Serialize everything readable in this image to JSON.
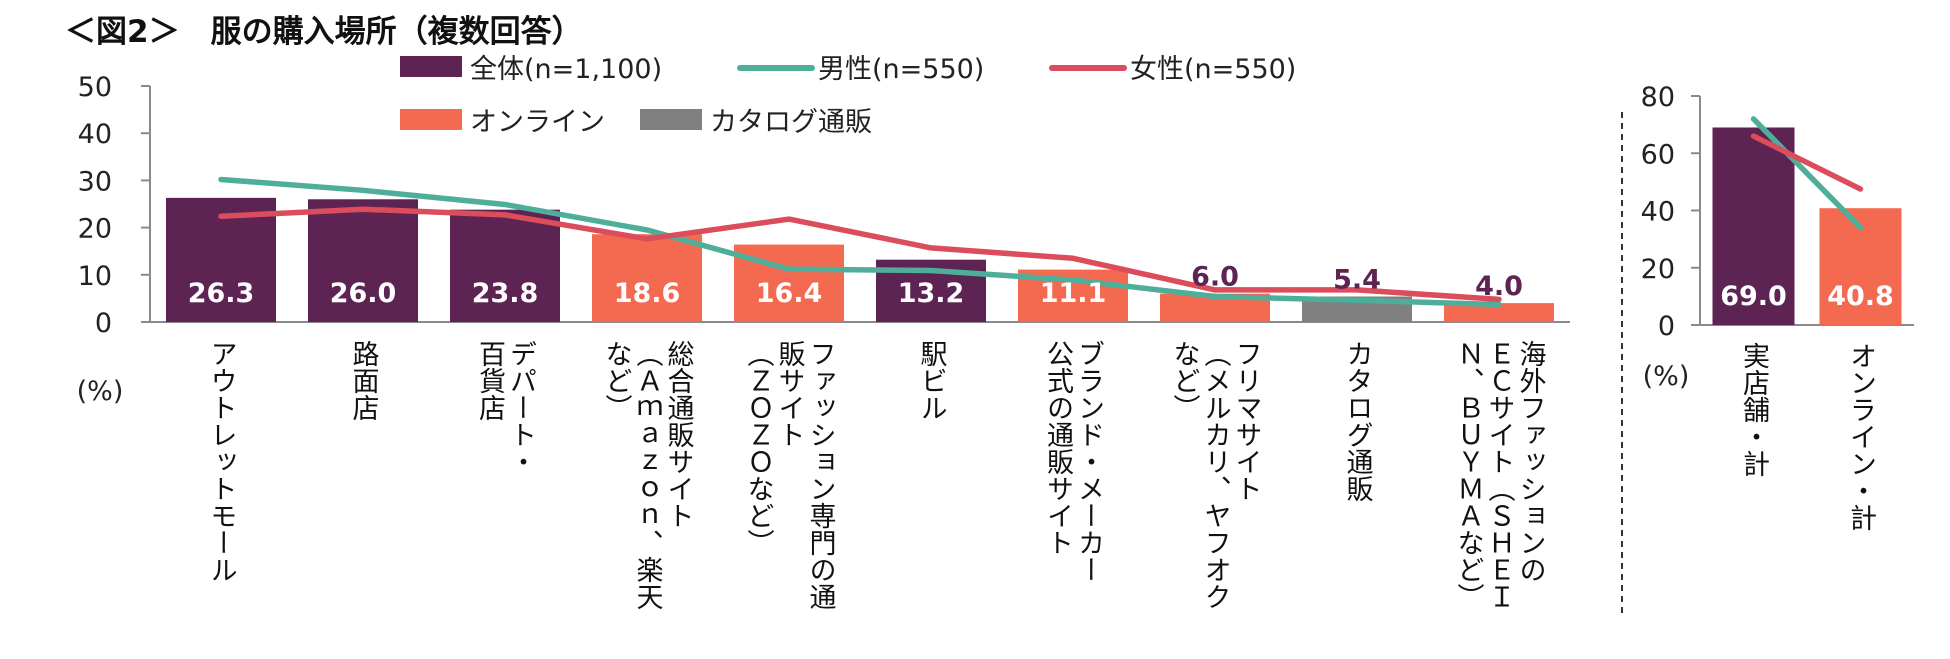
{
  "title": "＜図2＞　服の購入場所（複数回答）",
  "colors": {
    "overall": "#5c2353",
    "online": "#f36a50",
    "catalog": "#808080",
    "male": "#4fae99",
    "female": "#dc4d5c",
    "value_light": "#ffffff",
    "value_dark": "#5c2353"
  },
  "chart_data": [
    {
      "type": "bar",
      "unit_label": "(%)",
      "ylim": [
        0,
        50
      ],
      "yticks": [
        0,
        10,
        20,
        30,
        40,
        50
      ],
      "legend": [
        {
          "key": "overall",
          "label": "全体(n=1,100)",
          "kind": "bar"
        },
        {
          "key": "male",
          "label": "男性(n=550)",
          "kind": "line"
        },
        {
          "key": "female",
          "label": "女性(n=550)",
          "kind": "line"
        },
        {
          "key": "online",
          "label": "オンライン",
          "kind": "bar"
        },
        {
          "key": "catalog",
          "label": "カタログ通販",
          "kind": "bar"
        }
      ],
      "categories": [
        {
          "label_cols": [
            "アウトレットモール"
          ],
          "value": 26.3,
          "value_text": "26.3",
          "group": "overall",
          "male": 30.2,
          "female": 22.4
        },
        {
          "label_cols": [
            "路面店"
          ],
          "value": 26.0,
          "value_text": "26.0",
          "group": "overall",
          "male": 27.9,
          "female": 23.9
        },
        {
          "label_cols": [
            "デパート・",
            "百貨店"
          ],
          "value": 23.8,
          "value_text": "23.8",
          "group": "overall",
          "male": 24.9,
          "female": 22.7
        },
        {
          "label_cols": [
            "総合通販サイト",
            "（Ａｍａｚｏｎ、楽天",
            "など）"
          ],
          "value": 18.6,
          "value_text": "18.6",
          "group": "online",
          "male": 19.5,
          "female": 17.6
        },
        {
          "label_cols": [
            "ファッション専門の通",
            "販サイト",
            "（ＺＯＺＯなど）"
          ],
          "value": 16.4,
          "value_text": "16.4",
          "group": "online",
          "male": 11.2,
          "female": 21.8
        },
        {
          "label_cols": [
            "駅ビル"
          ],
          "value": 13.2,
          "value_text": "13.2",
          "group": "overall",
          "male": 10.9,
          "female": 15.7
        },
        {
          "label_cols": [
            "ブランド・メーカー",
            "公式の通販サイト"
          ],
          "value": 11.1,
          "value_text": "11.1",
          "group": "online",
          "male": 8.9,
          "female": 13.5
        },
        {
          "label_cols": [
            "フリマサイト",
            "（メルカリ、ヤフオク",
            "など）"
          ],
          "value": 6.0,
          "value_text": "6.0",
          "group": "online",
          "male": 5.4,
          "female": 6.8
        },
        {
          "label_cols": [
            "カタログ通販"
          ],
          "value": 5.4,
          "value_text": "5.4",
          "group": "catalog",
          "male": 4.6,
          "female": 6.8
        },
        {
          "label_cols": [
            "海外ファッションの",
            "ＥＣサイト（ＳＨＥＩ",
            "Ｎ、ＢＵＹＭＡなど）"
          ],
          "value": 4.0,
          "value_text": "4.0",
          "group": "online",
          "male": 3.7,
          "female": 4.8
        }
      ]
    },
    {
      "type": "bar",
      "unit_label": "(%)",
      "ylim": [
        0,
        80
      ],
      "yticks": [
        0,
        20,
        40,
        60,
        80
      ],
      "categories": [
        {
          "label_cols": [
            "実店舗・計"
          ],
          "value": 69.0,
          "value_text": "69.0",
          "group": "overall",
          "male": 72.0,
          "female": 66.0
        },
        {
          "label_cols": [
            "オンライン・計"
          ],
          "value": 40.8,
          "value_text": "40.8",
          "group": "online",
          "male": 34.0,
          "female": 47.5
        }
      ]
    }
  ]
}
